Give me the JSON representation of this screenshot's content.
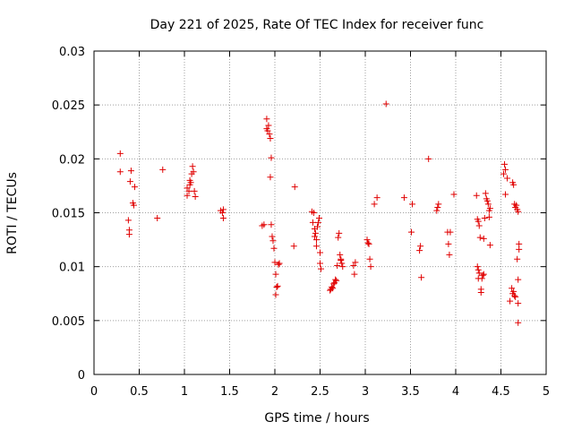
{
  "chart_data": {
    "type": "scatter",
    "title": "Day 221 of 2025, Rate Of TEC Index for receiver func",
    "xlabel": "GPS time / hours",
    "ylabel": "ROTI / TECUs",
    "xlim": [
      0,
      5
    ],
    "ylim": [
      0,
      0.03
    ],
    "x_ticks": [
      "0",
      "0.5",
      "1",
      "1.5",
      "2",
      "2.5",
      "3",
      "3.5",
      "4",
      "4.5",
      "5"
    ],
    "y_ticks": [
      "0",
      "0.005",
      "0.01",
      "0.015",
      "0.02",
      "0.025",
      "0.03"
    ],
    "grid": true,
    "marker": "+",
    "color": "#e00000",
    "points": [
      [
        0.29,
        0.0205
      ],
      [
        0.29,
        0.0188
      ],
      [
        0.4,
        0.0179
      ],
      [
        0.41,
        0.0189
      ],
      [
        0.43,
        0.0159
      ],
      [
        0.45,
        0.0174
      ],
      [
        0.44,
        0.0157
      ],
      [
        0.38,
        0.0143
      ],
      [
        0.39,
        0.0134
      ],
      [
        0.39,
        0.013
      ],
      [
        0.7,
        0.0145
      ],
      [
        0.76,
        0.019
      ],
      [
        1.03,
        0.0173
      ],
      [
        1.03,
        0.0166
      ],
      [
        1.05,
        0.017
      ],
      [
        1.06,
        0.0176
      ],
      [
        1.07,
        0.0178
      ],
      [
        1.08,
        0.0186
      ],
      [
        1.09,
        0.0193
      ],
      [
        1.1,
        0.0188
      ],
      [
        1.11,
        0.017
      ],
      [
        1.12,
        0.0165
      ],
      [
        1.06,
        0.018
      ],
      [
        1.4,
        0.0152
      ],
      [
        1.42,
        0.015
      ],
      [
        1.43,
        0.0153
      ],
      [
        1.43,
        0.0145
      ],
      [
        1.86,
        0.0138
      ],
      [
        1.88,
        0.0139
      ],
      [
        1.91,
        0.0237
      ],
      [
        1.91,
        0.0228
      ],
      [
        1.92,
        0.0226
      ],
      [
        1.93,
        0.0231
      ],
      [
        1.94,
        0.0223
      ],
      [
        1.95,
        0.0219
      ],
      [
        1.96,
        0.0201
      ],
      [
        1.95,
        0.0183
      ],
      [
        1.96,
        0.0139
      ],
      [
        1.97,
        0.0128
      ],
      [
        1.98,
        0.0124
      ],
      [
        1.99,
        0.0117
      ],
      [
        2.0,
        0.0104
      ],
      [
        2.01,
        0.0093
      ],
      [
        2.02,
        0.0081
      ],
      [
        2.01,
        0.0074
      ],
      [
        2.04,
        0.0102
      ],
      [
        2.05,
        0.0103
      ],
      [
        2.03,
        0.0082
      ],
      [
        2.22,
        0.0174
      ],
      [
        2.21,
        0.0119
      ],
      [
        2.41,
        0.0151
      ],
      [
        2.42,
        0.0141
      ],
      [
        2.43,
        0.015
      ],
      [
        2.44,
        0.0135
      ],
      [
        2.44,
        0.0128
      ],
      [
        2.45,
        0.0131
      ],
      [
        2.46,
        0.0125
      ],
      [
        2.46,
        0.0119
      ],
      [
        2.47,
        0.0137
      ],
      [
        2.48,
        0.0141
      ],
      [
        2.49,
        0.0145
      ],
      [
        2.5,
        0.0113
      ],
      [
        2.5,
        0.0103
      ],
      [
        2.51,
        0.0098
      ],
      [
        2.61,
        0.0078
      ],
      [
        2.62,
        0.0079
      ],
      [
        2.63,
        0.0081
      ],
      [
        2.64,
        0.008
      ],
      [
        2.65,
        0.0084
      ],
      [
        2.66,
        0.0085
      ],
      [
        2.67,
        0.0088
      ],
      [
        2.68,
        0.0087
      ],
      [
        2.69,
        0.0101
      ],
      [
        2.7,
        0.0127
      ],
      [
        2.71,
        0.0131
      ],
      [
        2.72,
        0.0111
      ],
      [
        2.73,
        0.0106
      ],
      [
        2.74,
        0.0103
      ],
      [
        2.75,
        0.01
      ],
      [
        2.73,
        0.0107
      ],
      [
        2.87,
        0.0101
      ],
      [
        2.88,
        0.0093
      ],
      [
        2.89,
        0.0104
      ],
      [
        3.02,
        0.0125
      ],
      [
        3.03,
        0.0122
      ],
      [
        3.04,
        0.0121
      ],
      [
        3.05,
        0.0107
      ],
      [
        3.06,
        0.01
      ],
      [
        3.1,
        0.0158
      ],
      [
        3.13,
        0.0164
      ],
      [
        3.23,
        0.0251
      ],
      [
        3.43,
        0.0164
      ],
      [
        3.51,
        0.0132
      ],
      [
        3.52,
        0.0158
      ],
      [
        3.6,
        0.0115
      ],
      [
        3.61,
        0.0119
      ],
      [
        3.62,
        0.009
      ],
      [
        3.7,
        0.02
      ],
      [
        3.79,
        0.0152
      ],
      [
        3.8,
        0.0155
      ],
      [
        3.81,
        0.0158
      ],
      [
        3.91,
        0.0132
      ],
      [
        3.92,
        0.0121
      ],
      [
        3.93,
        0.0111
      ],
      [
        3.94,
        0.0132
      ],
      [
        3.98,
        0.0167
      ],
      [
        4.23,
        0.0166
      ],
      [
        4.24,
        0.0144
      ],
      [
        4.25,
        0.0142
      ],
      [
        4.26,
        0.0138
      ],
      [
        4.24,
        0.01
      ],
      [
        4.25,
        0.0097
      ],
      [
        4.26,
        0.0094
      ],
      [
        4.25,
        0.0089
      ],
      [
        4.27,
        0.0127
      ],
      [
        4.28,
        0.0079
      ],
      [
        4.28,
        0.0076
      ],
      [
        4.29,
        0.0089
      ],
      [
        4.3,
        0.0092
      ],
      [
        4.31,
        0.0093
      ],
      [
        4.31,
        0.0126
      ],
      [
        4.32,
        0.0145
      ],
      [
        4.33,
        0.0168
      ],
      [
        4.34,
        0.0163
      ],
      [
        4.35,
        0.0161
      ],
      [
        4.36,
        0.0158
      ],
      [
        4.37,
        0.0152
      ],
      [
        4.38,
        0.0154
      ],
      [
        4.37,
        0.0146
      ],
      [
        4.38,
        0.012
      ],
      [
        4.53,
        0.0186
      ],
      [
        4.54,
        0.0195
      ],
      [
        4.55,
        0.019
      ],
      [
        4.55,
        0.0167
      ],
      [
        4.57,
        0.0182
      ],
      [
        4.6,
        0.0068
      ],
      [
        4.62,
        0.008
      ],
      [
        4.63,
        0.0075
      ],
      [
        4.64,
        0.0077
      ],
      [
        4.65,
        0.0073
      ],
      [
        4.66,
        0.0072
      ],
      [
        4.63,
        0.0178
      ],
      [
        4.64,
        0.0176
      ],
      [
        4.65,
        0.0158
      ],
      [
        4.66,
        0.0155
      ],
      [
        4.67,
        0.0157
      ],
      [
        4.68,
        0.0153
      ],
      [
        4.69,
        0.0151
      ],
      [
        4.68,
        0.0107
      ],
      [
        4.69,
        0.0088
      ],
      [
        4.7,
        0.0121
      ],
      [
        4.7,
        0.0116
      ],
      [
        4.69,
        0.0066
      ],
      [
        4.69,
        0.0048
      ]
    ]
  }
}
